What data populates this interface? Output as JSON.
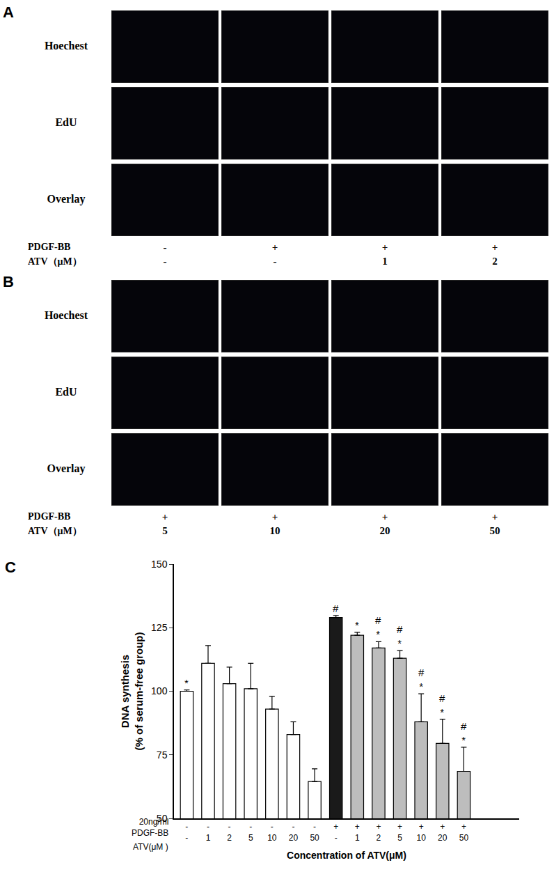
{
  "figure": {
    "panels": [
      {
        "label": "A",
        "rows": [
          "Hoechest",
          "EdU",
          "Overlay"
        ],
        "pdgf_label": "PDGF-BB",
        "atv_label": "ATV（μM）",
        "pdgf": [
          "-",
          "+",
          "+",
          "+"
        ],
        "atv": [
          "-",
          "-",
          "1",
          "2"
        ]
      },
      {
        "label": "B",
        "rows": [
          "Hoechest",
          "EdU",
          "Overlay"
        ],
        "pdgf_label": "PDGF-BB",
        "atv_label": "ATV（μM）",
        "pdgf": [
          "+",
          "+",
          "+",
          "+"
        ],
        "atv": [
          "5",
          "10",
          "20",
          "50"
        ]
      }
    ]
  },
  "chart_data": {
    "type": "bar",
    "panel_label": "C",
    "y_label": "DNA synthesis\n(% of serum-free group)",
    "x_label": "Concentration of ATV(μM)",
    "row_labels": {
      "pdgf": "20ng/ml\nPDGF-BB",
      "atv": "ATV(μM )"
    },
    "categories": [
      "-",
      "1",
      "2",
      "5",
      "10",
      "20",
      "50",
      "-",
      "1",
      "2",
      "5",
      "10",
      "20",
      "50",
      null,
      null
    ],
    "pdgf_bb": [
      "-",
      "-",
      "-",
      "-",
      "-",
      "-",
      "-",
      "+",
      "+",
      "+",
      "+",
      "+",
      "+",
      "+",
      null,
      null
    ],
    "values": [
      100,
      111,
      103,
      101,
      93,
      83,
      64.5,
      129,
      122,
      117,
      113,
      88,
      79.5,
      68.5,
      null,
      null
    ],
    "errors": [
      0.5,
      7,
      6.5,
      10,
      5,
      5,
      5,
      0.8,
      1.2,
      2.5,
      3,
      11,
      9.5,
      9.5,
      null,
      null
    ],
    "colors": [
      "#ffffff",
      "#ffffff",
      "#ffffff",
      "#ffffff",
      "#ffffff",
      "#ffffff",
      "#ffffff",
      "#1a1a1a",
      "#bdbdbd",
      "#bdbdbd",
      "#bdbdbd",
      "#bdbdbd",
      "#bdbdbd",
      "#bdbdbd",
      "#ffffff",
      "#ffffff"
    ],
    "significance": [
      "*",
      "",
      "",
      "",
      "",
      "",
      "",
      "#",
      "*",
      "#\n*",
      "#\n*",
      "#\n*",
      "#\n*",
      "#\n*",
      "",
      ""
    ],
    "ylim": [
      50,
      150
    ],
    "yticks": [
      50,
      75,
      100,
      125,
      150
    ],
    "grid": false
  }
}
